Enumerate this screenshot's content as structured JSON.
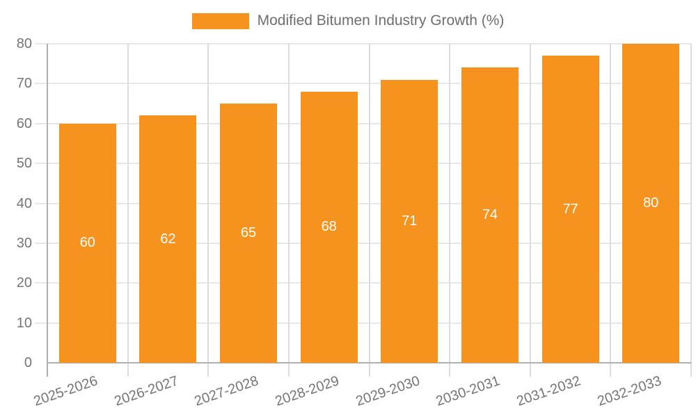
{
  "legend": {
    "label": "Modified Bitumen Industry Growth (%)"
  },
  "chart_data": {
    "type": "bar",
    "title": "",
    "xlabel": "",
    "ylabel": "",
    "categories": [
      "2025-2026",
      "2026-2027",
      "2027-2028",
      "2028-2029",
      "2029-2030",
      "2030-2031",
      "2031-2032",
      "2032-2033"
    ],
    "series": [
      {
        "name": "Modified Bitumen Industry Growth (%)",
        "values": [
          60,
          62,
          65,
          68,
          71,
          74,
          77,
          80
        ]
      }
    ],
    "bar_value_labels": [
      "60",
      "62",
      "65",
      "68",
      "71",
      "74",
      "77",
      "80"
    ],
    "ylim": [
      0,
      80
    ],
    "ytick_step": 10,
    "ytick_labels": [
      "0",
      "10",
      "20",
      "30",
      "40",
      "50",
      "60",
      "70",
      "80"
    ],
    "grid": true,
    "legend_position": "top-center",
    "colors": {
      "bar": "#f6921e",
      "axis_text": "#757575",
      "bar_label_text": "#ffffff",
      "gridline_h": "#e7e7e7",
      "gridline_v": "#dcdcdc",
      "axis_line": "#b0b0b0"
    }
  }
}
